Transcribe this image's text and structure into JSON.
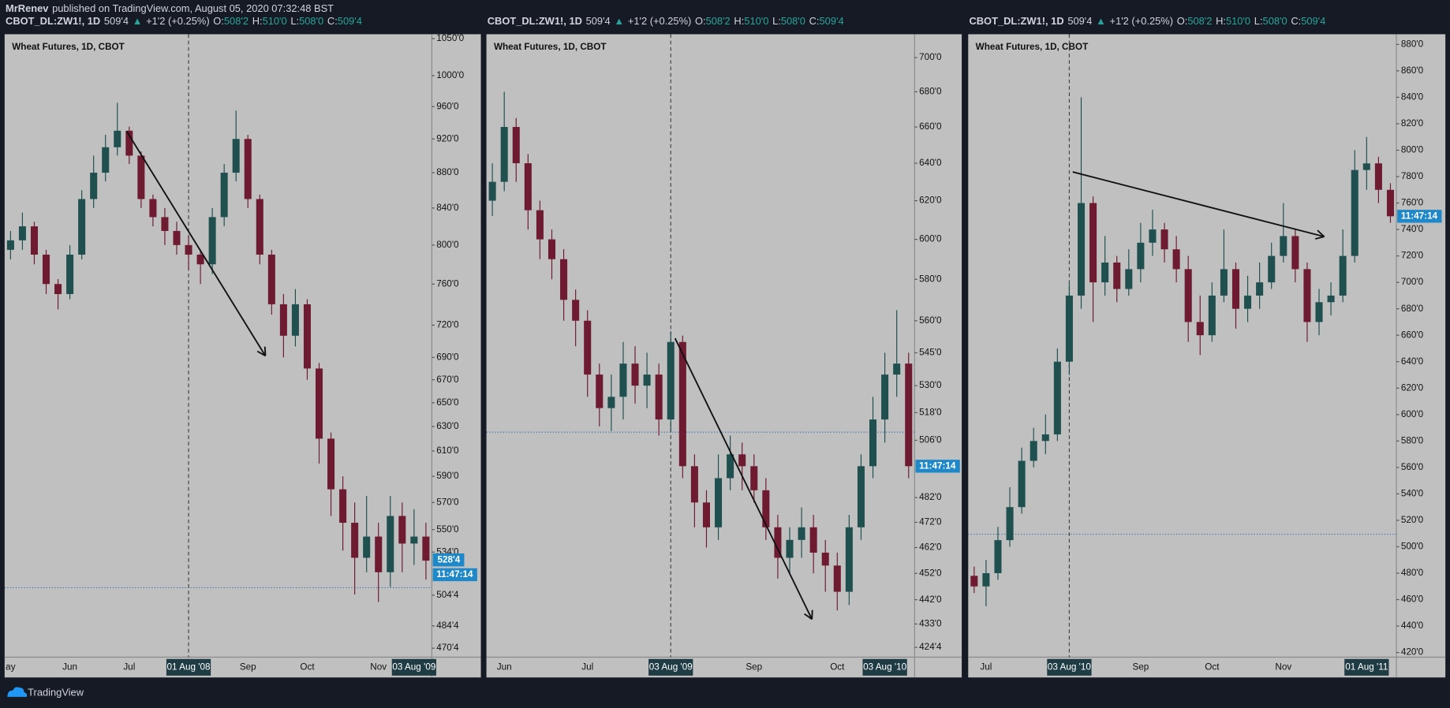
{
  "header": {
    "author": "MrRenev",
    "published": "published on TradingView.com, August 05, 2020 07:32:48 BST"
  },
  "quote": {
    "symbol": "CBOT_DL:ZW1!, 1D",
    "last": "509'4",
    "arrow": "▲",
    "change": "+1'2 (+0.25%)",
    "o_label": "O:",
    "o": "508'2",
    "h_label": "H:",
    "h": "510'0",
    "l_label": "L:",
    "l": "508'0",
    "c_label": "C:",
    "c": "509'4"
  },
  "footer": {
    "brand": "TradingView"
  },
  "chart_data": [
    {
      "type": "candlestick",
      "title": "Wheat Futures, 1D, CBOT",
      "log": true,
      "up_color": "#1f4f4f",
      "down_color": "#6e1a30",
      "ylim": [
        465,
        1056
      ],
      "yticks": [
        {
          "value": 1050,
          "label": "1050'0"
        },
        {
          "value": 1000,
          "label": "1000'0"
        },
        {
          "value": 960,
          "label": "960'0"
        },
        {
          "value": 920,
          "label": "920'0"
        },
        {
          "value": 880,
          "label": "880'0"
        },
        {
          "value": 840,
          "label": "840'0"
        },
        {
          "value": 800,
          "label": "800'0"
        },
        {
          "value": 760,
          "label": "760'0"
        },
        {
          "value": 720,
          "label": "720'0"
        },
        {
          "value": 690,
          "label": "690'0"
        },
        {
          "value": 670,
          "label": "670'0"
        },
        {
          "value": 650,
          "label": "650'0"
        },
        {
          "value": 630,
          "label": "630'0"
        },
        {
          "value": 610,
          "label": "610'0"
        },
        {
          "value": 590,
          "label": "590'0"
        },
        {
          "value": 570,
          "label": "570'0"
        },
        {
          "value": 550,
          "label": "550'0"
        },
        {
          "value": 534,
          "label": "534'0"
        },
        {
          "value": 504.5,
          "label": "504'4"
        },
        {
          "value": 484.5,
          "label": "484'4"
        },
        {
          "value": 470.5,
          "label": "470'4"
        }
      ],
      "categories": [
        "ay",
        null,
        null,
        null,
        null,
        "Jun",
        null,
        null,
        null,
        null,
        "Jul",
        null,
        null,
        null,
        null,
        "01 Aug '08",
        null,
        null,
        null,
        null,
        "Sep",
        null,
        null,
        null,
        null,
        "Oct",
        null,
        null,
        null,
        null,
        null,
        "Nov",
        null,
        null,
        "03 Aug '09",
        null
      ],
      "boxed_categories": [
        15,
        34
      ],
      "open": [
        795,
        805,
        820,
        790,
        760,
        750,
        790,
        850,
        880,
        910,
        930,
        900,
        850,
        830,
        815,
        800,
        790,
        780,
        830,
        880,
        920,
        850,
        790,
        740,
        710,
        740,
        680,
        620,
        580,
        555,
        530,
        545,
        520,
        560,
        540,
        545
      ],
      "high": [
        815,
        835,
        825,
        795,
        765,
        800,
        860,
        900,
        925,
        965,
        935,
        905,
        855,
        840,
        825,
        810,
        795,
        840,
        890,
        955,
        925,
        855,
        795,
        750,
        755,
        745,
        685,
        625,
        590,
        570,
        575,
        555,
        575,
        570,
        565,
        555
      ],
      "low": [
        785,
        795,
        780,
        750,
        735,
        745,
        785,
        840,
        870,
        900,
        890,
        840,
        820,
        800,
        790,
        775,
        760,
        770,
        820,
        870,
        840,
        780,
        730,
        690,
        700,
        670,
        600,
        560,
        535,
        505,
        520,
        500,
        510,
        520,
        525,
        515
      ],
      "close": [
        805,
        820,
        790,
        760,
        750,
        790,
        850,
        880,
        910,
        930,
        900,
        850,
        830,
        815,
        800,
        790,
        780,
        830,
        880,
        920,
        850,
        790,
        740,
        710,
        740,
        680,
        620,
        580,
        555,
        530,
        545,
        520,
        560,
        540,
        545,
        528
      ],
      "ref_line": 509.5,
      "price_marker": {
        "value": 528.5,
        "label": "528'4"
      },
      "countdown": "11:47:14"
    },
    {
      "type": "candlestick",
      "title": "Wheat Futures, 1D, CBOT",
      "log": true,
      "up_color": "#1f4f4f",
      "down_color": "#6e1a30",
      "ylim": [
        421,
        714
      ],
      "yticks": [
        {
          "value": 700,
          "label": "700'0"
        },
        {
          "value": 680,
          "label": "680'0"
        },
        {
          "value": 660,
          "label": "660'0"
        },
        {
          "value": 640,
          "label": "640'0"
        },
        {
          "value": 620,
          "label": "620'0"
        },
        {
          "value": 600,
          "label": "600'0"
        },
        {
          "value": 580,
          "label": "580'0"
        },
        {
          "value": 560,
          "label": "560'0"
        },
        {
          "value": 545,
          "label": "545'0"
        },
        {
          "value": 530,
          "label": "530'0"
        },
        {
          "value": 518,
          "label": "518'0"
        },
        {
          "value": 506,
          "label": "506'0"
        },
        {
          "value": 482,
          "label": "482'0"
        },
        {
          "value": 472,
          "label": "472'0"
        },
        {
          "value": 462,
          "label": "462'0"
        },
        {
          "value": 452,
          "label": "452'0"
        },
        {
          "value": 442,
          "label": "442'0"
        },
        {
          "value": 433,
          "label": "433'0"
        },
        {
          "value": 424.5,
          "label": "424'4"
        }
      ],
      "categories": [
        null,
        "Jun",
        null,
        null,
        null,
        null,
        null,
        null,
        "Jul",
        null,
        null,
        null,
        null,
        null,
        null,
        "03 Aug '09",
        null,
        null,
        null,
        null,
        null,
        null,
        "Sep",
        null,
        null,
        null,
        null,
        null,
        null,
        "Oct",
        null,
        null,
        null,
        "03 Aug '10",
        null,
        null
      ],
      "boxed_categories": [
        15,
        33
      ],
      "open": [
        620,
        630,
        660,
        640,
        615,
        600,
        590,
        570,
        560,
        535,
        520,
        525,
        540,
        530,
        535,
        515,
        550,
        495,
        480,
        470,
        490,
        500,
        495,
        485,
        470,
        458,
        465,
        470,
        460,
        455,
        445,
        470,
        495,
        515,
        535,
        540
      ],
      "high": [
        640,
        680,
        665,
        645,
        620,
        605,
        595,
        575,
        565,
        540,
        535,
        550,
        548,
        545,
        540,
        555,
        553,
        500,
        485,
        500,
        508,
        505,
        500,
        490,
        475,
        470,
        478,
        475,
        465,
        460,
        475,
        500,
        525,
        545,
        565,
        545
      ],
      "low": [
        612,
        625,
        630,
        605,
        590,
        580,
        560,
        548,
        525,
        512,
        510,
        515,
        522,
        520,
        508,
        510,
        490,
        470,
        462,
        465,
        485,
        485,
        480,
        465,
        450,
        452,
        458,
        452,
        445,
        438,
        440,
        465,
        490,
        505,
        525,
        490
      ],
      "close": [
        630,
        660,
        640,
        615,
        600,
        590,
        570,
        560,
        535,
        520,
        525,
        540,
        530,
        535,
        515,
        550,
        495,
        480,
        470,
        490,
        500,
        495,
        485,
        470,
        458,
        465,
        470,
        460,
        455,
        445,
        470,
        495,
        515,
        535,
        540,
        495
      ],
      "ref_line": 509.5,
      "countdown": "11:47:14"
    },
    {
      "type": "candlestick",
      "title": "Wheat Futures, 1D, CBOT",
      "log": false,
      "up_color": "#1f4f4f",
      "down_color": "#6e1a30",
      "ylim": [
        416.5,
        887.7
      ],
      "yticks": [
        {
          "value": 880,
          "label": "880'0"
        },
        {
          "value": 860,
          "label": "860'0"
        },
        {
          "value": 840,
          "label": "840'0"
        },
        {
          "value": 820,
          "label": "820'0"
        },
        {
          "value": 800,
          "label": "800'0"
        },
        {
          "value": 780,
          "label": "780'0"
        },
        {
          "value": 760,
          "label": "760'0"
        },
        {
          "value": 740,
          "label": "740'0"
        },
        {
          "value": 720,
          "label": "720'0"
        },
        {
          "value": 700,
          "label": "700'0"
        },
        {
          "value": 680,
          "label": "680'0"
        },
        {
          "value": 660,
          "label": "660'0"
        },
        {
          "value": 640,
          "label": "640'0"
        },
        {
          "value": 620,
          "label": "620'0"
        },
        {
          "value": 600,
          "label": "600'0"
        },
        {
          "value": 580,
          "label": "580'0"
        },
        {
          "value": 560,
          "label": "560'0"
        },
        {
          "value": 540,
          "label": "540'0"
        },
        {
          "value": 520,
          "label": "520'0"
        },
        {
          "value": 500,
          "label": "500'0"
        },
        {
          "value": 480,
          "label": "480'0"
        },
        {
          "value": 460,
          "label": "460'0"
        },
        {
          "value": 440,
          "label": "440'0"
        },
        {
          "value": 420,
          "label": "420'0"
        }
      ],
      "categories": [
        null,
        "Jul",
        null,
        null,
        null,
        null,
        null,
        null,
        "03 Aug '10",
        null,
        null,
        null,
        null,
        null,
        "Sep",
        null,
        null,
        null,
        null,
        null,
        "Oct",
        null,
        null,
        null,
        null,
        null,
        "Nov",
        null,
        null,
        null,
        null,
        null,
        null,
        "01 Aug '11",
        null,
        null
      ],
      "boxed_categories": [
        8,
        33
      ],
      "open": [
        478,
        470,
        480,
        505,
        530,
        565,
        580,
        585,
        640,
        690,
        760,
        700,
        715,
        695,
        710,
        730,
        740,
        725,
        710,
        670,
        660,
        690,
        710,
        680,
        690,
        700,
        720,
        735,
        710,
        670,
        685,
        690,
        720,
        785,
        790,
        770
      ],
      "high": [
        485,
        490,
        515,
        545,
        575,
        590,
        600,
        650,
        700,
        840,
        765,
        735,
        720,
        725,
        745,
        755,
        745,
        735,
        720,
        690,
        700,
        740,
        715,
        705,
        715,
        730,
        760,
        740,
        715,
        695,
        700,
        740,
        800,
        810,
        795,
        775
      ],
      "low": [
        465,
        455,
        475,
        500,
        525,
        560,
        570,
        580,
        630,
        680,
        670,
        690,
        685,
        690,
        700,
        720,
        715,
        700,
        655,
        645,
        655,
        685,
        665,
        670,
        680,
        695,
        715,
        700,
        655,
        660,
        675,
        685,
        715,
        770,
        760,
        745
      ],
      "close": [
        470,
        480,
        505,
        530,
        565,
        580,
        585,
        640,
        690,
        760,
        700,
        715,
        695,
        710,
        730,
        740,
        725,
        710,
        670,
        660,
        690,
        710,
        680,
        690,
        700,
        720,
        735,
        710,
        670,
        685,
        690,
        720,
        785,
        790,
        770,
        750
      ],
      "ref_line": 509.5,
      "countdown": "11:47:14"
    }
  ]
}
